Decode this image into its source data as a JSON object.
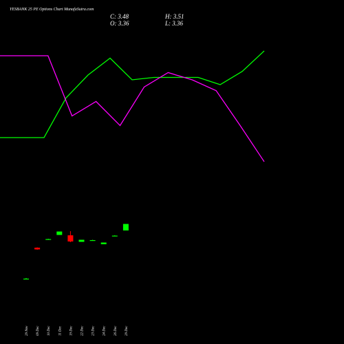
{
  "header": {
    "title": "YESBANK 25 PE Options Chart MunafaSutra.com",
    "close_label": "C: 3.48",
    "high_label": "H: 3.51",
    "open_label": "O: 3.36",
    "low_label": "L: 3.36"
  },
  "chart_data": {
    "type": "candlestick",
    "title": "YESBANK 25 PE Options Chart MunafaSutra.com",
    "categories": [
      "29 Nov",
      "09 Dec",
      "10 Dec",
      "11 Dec",
      "19 Dec",
      "22 Dec",
      "23 Dec",
      "24 Dec",
      "26 Dec",
      "29 Dec"
    ],
    "candles": [
      {
        "date": "29 Nov",
        "open": 1.1,
        "high": 1.12,
        "low": 1.08,
        "close": 1.1,
        "color": "#00ff00"
      },
      {
        "date": "09 Dec",
        "open": 2.0,
        "high": 2.01,
        "low": 1.94,
        "close": 1.95,
        "color": "#ff0000"
      },
      {
        "date": "10 Dec",
        "open": 2.25,
        "high": 2.26,
        "low": 2.24,
        "close": 2.25,
        "color": "#00ff00"
      },
      {
        "date": "11 Dec",
        "open": 2.37,
        "high": 2.47,
        "low": 2.37,
        "close": 2.47,
        "color": "#00ff00"
      },
      {
        "date": "19 Dec",
        "open": 2.36,
        "high": 2.48,
        "low": 2.16,
        "close": 2.18,
        "color": "#ff0000"
      },
      {
        "date": "22 Dec",
        "open": 2.17,
        "high": 2.23,
        "low": 2.17,
        "close": 2.23,
        "color": "#00ff00"
      },
      {
        "date": "23 Dec",
        "open": 2.22,
        "high": 2.23,
        "low": 2.21,
        "close": 2.22,
        "color": "#00ff00"
      },
      {
        "date": "24 Dec",
        "open": 2.1,
        "high": 2.15,
        "low": 2.1,
        "close": 2.15,
        "color": "#00ff00"
      },
      {
        "date": "26 Dec",
        "open": 2.35,
        "high": 2.36,
        "low": 2.34,
        "close": 2.35,
        "color": "#00ff00"
      },
      {
        "date": "29 Dec",
        "open": 2.5,
        "high": 2.69,
        "low": 2.5,
        "close": 2.69,
        "color": "#00ff00"
      }
    ],
    "price_range": [
      0,
      8
    ],
    "overlays": [
      {
        "color": "#00ff00",
        "level_range": [
          0,
          1
        ],
        "values": [
          0.2,
          0.2,
          0.2,
          0.53,
          0.72,
          0.86,
          0.68,
          0.7,
          0.7,
          0.7,
          0.64,
          0.75,
          0.92
        ]
      },
      {
        "color": "#ff00ff",
        "level_range": [
          0,
          1
        ],
        "values": [
          0.88,
          0.88,
          0.88,
          0.38,
          0.5,
          0.3,
          0.62,
          0.74,
          0.68,
          0.59,
          0.3,
          0.0
        ]
      }
    ],
    "grid": false,
    "legend": "none"
  }
}
